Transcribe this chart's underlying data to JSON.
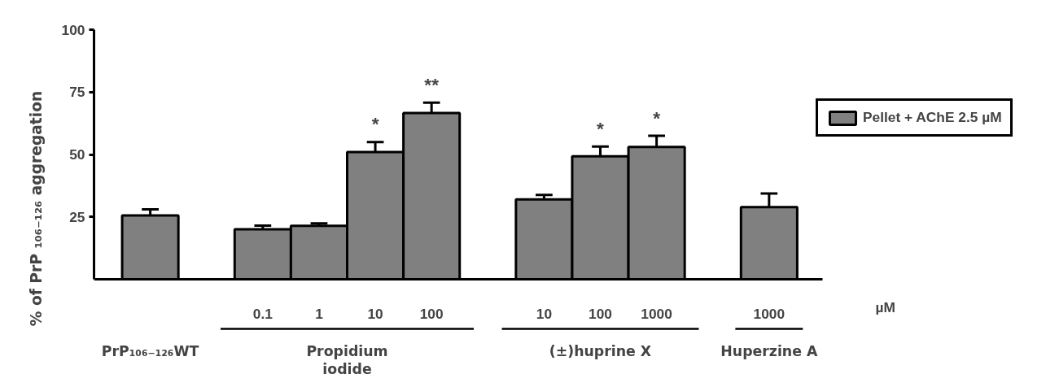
{
  "chart_data": {
    "type": "bar",
    "ylabel": "% of PrP ₁₀₆₋₁₂₆ aggregation",
    "categories": [
      null,
      null,
      "0.1",
      "1",
      "10",
      "100",
      null,
      "10",
      "100",
      "1000",
      null,
      "1000"
    ],
    "series": [
      {
        "name": "Pellet + AChE 2.5 µM",
        "color": "#808080",
        "values": [
          25.6,
          null,
          20,
          21.4,
          51,
          66.6,
          null,
          32,
          49.3,
          53,
          null,
          28.9
        ],
        "errors": [
          [
            25.6,
            28
          ],
          null,
          [
            20,
            21.5
          ],
          [
            21.4,
            22.4
          ],
          [
            51,
            55
          ],
          [
            66.6,
            70.8
          ],
          null,
          [
            32,
            33.8
          ],
          [
            49.3,
            53.2
          ],
          [
            53,
            57.5
          ],
          null,
          [
            28.9,
            34.4
          ]
        ]
      }
    ],
    "ylim": [
      0,
      100
    ],
    "yticks": [
      25,
      50,
      75,
      100
    ],
    "grid": false,
    "legend": "right",
    "annotations": [
      "*",
      "**",
      "*",
      "*",
      "PrP₁₀₆₋₁₂₆WT",
      "Propidium\niodide",
      "(±)huprine X",
      "Huperzine A",
      "µM"
    ]
  }
}
